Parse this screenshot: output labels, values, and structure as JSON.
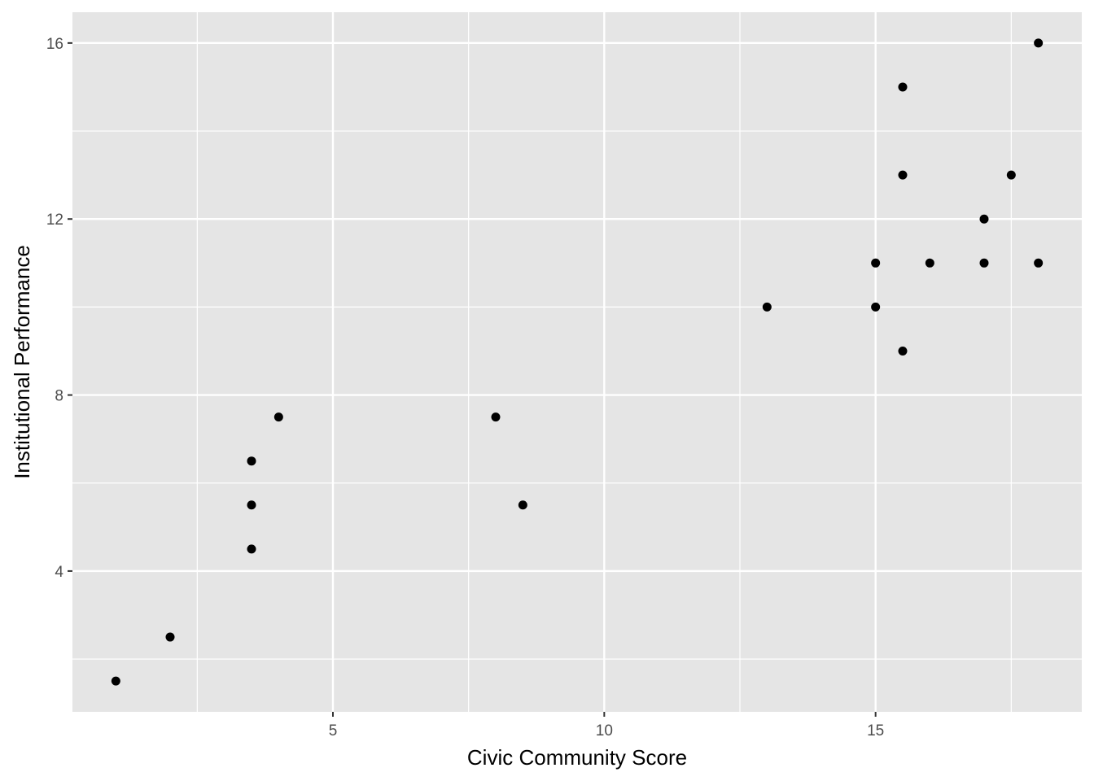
{
  "chart_data": {
    "type": "scatter",
    "title": "",
    "xlabel": "Civic Community Score",
    "ylabel": "Institutional Performance",
    "xlim": [
      0.2,
      18.8
    ],
    "ylim": [
      0.8,
      16.7
    ],
    "x_ticks": [
      5,
      10,
      15
    ],
    "x_tick_labels": [
      "5",
      "10",
      "15"
    ],
    "x_minor_ticks": [
      2.5,
      7.5,
      12.5,
      17.5
    ],
    "y_ticks": [
      4,
      8,
      12,
      16
    ],
    "y_tick_labels": [
      "4",
      "8",
      "12",
      "16"
    ],
    "y_minor_ticks": [
      2,
      6,
      10,
      14
    ],
    "grid": true,
    "colors": {
      "panel_background": "#e5e5e5",
      "grid_line": "#ffffff",
      "point": "#000000",
      "tick_mark": "#333333"
    },
    "points": [
      {
        "x": 1,
        "y": 1.5
      },
      {
        "x": 2,
        "y": 2.5
      },
      {
        "x": 3.5,
        "y": 4.5
      },
      {
        "x": 3.5,
        "y": 5.5
      },
      {
        "x": 3.5,
        "y": 6.5
      },
      {
        "x": 4,
        "y": 7.5
      },
      {
        "x": 8,
        "y": 7.5
      },
      {
        "x": 8.5,
        "y": 5.5
      },
      {
        "x": 13,
        "y": 10
      },
      {
        "x": 15,
        "y": 10
      },
      {
        "x": 15,
        "y": 11
      },
      {
        "x": 15.5,
        "y": 9
      },
      {
        "x": 15.5,
        "y": 13
      },
      {
        "x": 15.5,
        "y": 15
      },
      {
        "x": 16,
        "y": 11
      },
      {
        "x": 17,
        "y": 11
      },
      {
        "x": 17,
        "y": 12
      },
      {
        "x": 17.5,
        "y": 13
      },
      {
        "x": 18,
        "y": 11
      },
      {
        "x": 18,
        "y": 16
      }
    ]
  }
}
